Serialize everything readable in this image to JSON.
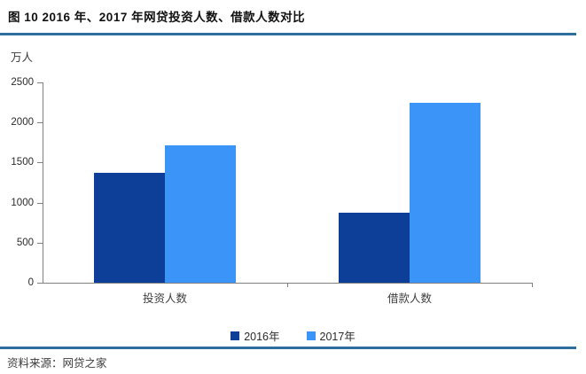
{
  "header": {
    "title": "图 10  2016 年、2017 年网贷投资人数、借款人数对比"
  },
  "footer": {
    "source": "资料来源：网贷之家"
  },
  "chart_data": {
    "type": "bar",
    "title": "2016 年、2017 年网贷投资人数、借款人数对比",
    "unit_label": "万人",
    "categories": [
      "投资人数",
      "借款人数"
    ],
    "series": [
      {
        "name": "2016年",
        "color": "#0d3f98",
        "values": [
          1375,
          876
        ]
      },
      {
        "name": "2017年",
        "color": "#3b94f7",
        "values": [
          1713,
          2243
        ]
      }
    ],
    "ylim": [
      0,
      2500
    ],
    "yticks": [
      0,
      500,
      1000,
      1500,
      2000,
      2500
    ],
    "grid": false,
    "legend_position": "bottom"
  },
  "colors": {
    "rule": "#2e6e9e",
    "axis": "#808080",
    "bar_2016": "#0d3f98",
    "bar_2017": "#3b94f7"
  }
}
